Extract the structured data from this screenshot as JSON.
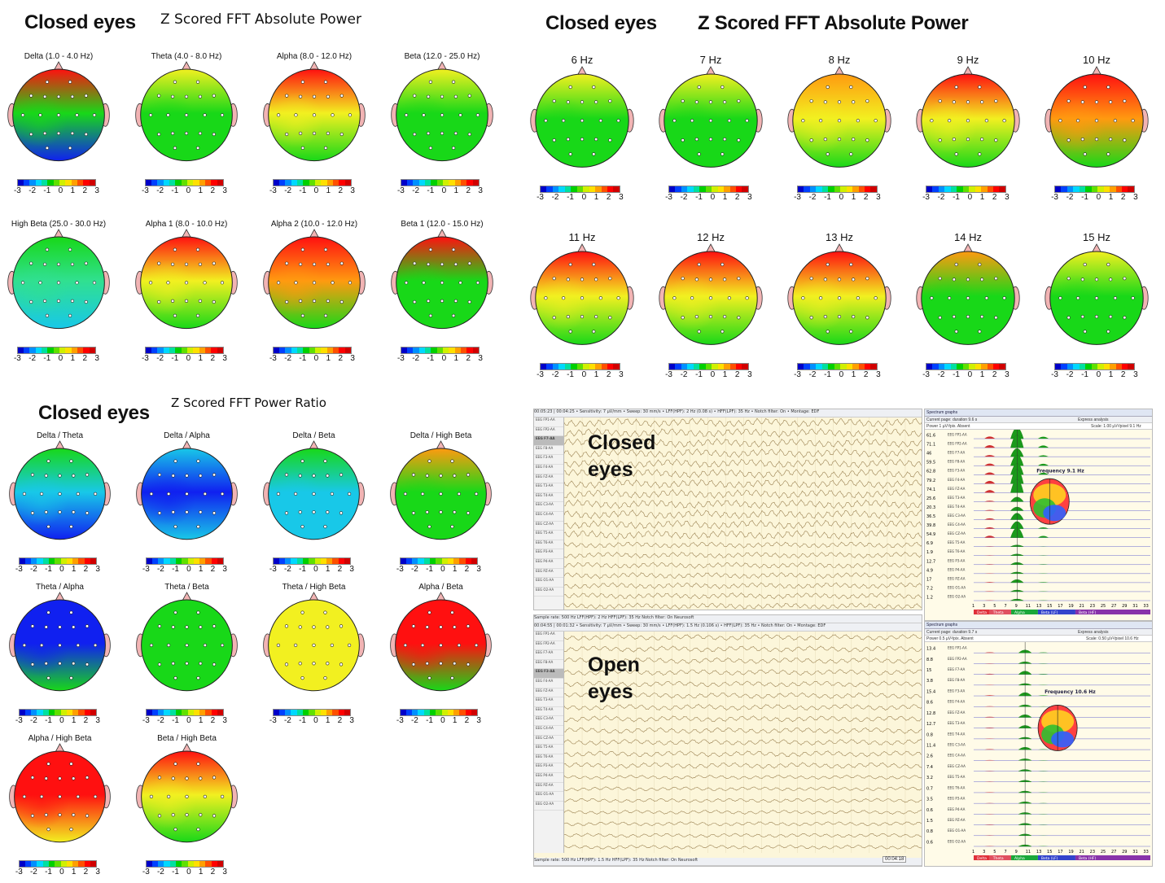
{
  "panel_a": {
    "title": "Closed eyes",
    "subtitle": "Z Scored FFT Absolute Power",
    "maps": [
      {
        "label": "Delta (1.0 - 4.0 Hz)",
        "top": "red",
        "mid": "green",
        "bot": "blue"
      },
      {
        "label": "Theta (4.0 - 8.0 Hz)",
        "top": "yellow",
        "mid": "green",
        "bot": "green"
      },
      {
        "label": "Alpha (8.0 - 12.0 Hz)",
        "top": "red",
        "mid": "yellow",
        "bot": "green"
      },
      {
        "label": "Beta (12.0 - 25.0 Hz)",
        "top": "yellow",
        "mid": "green",
        "bot": "green"
      },
      {
        "label": "High Beta (25.0 - 30.0 Hz)",
        "top": "green",
        "mid": "teal",
        "bot": "cyan"
      },
      {
        "label": "Alpha 1 (8.0 - 10.0 Hz)",
        "top": "red",
        "mid": "yellow",
        "bot": "green"
      },
      {
        "label": "Alpha 2 (10.0 - 12.0 Hz)",
        "top": "red",
        "mid": "orange",
        "bot": "green"
      },
      {
        "label": "Beta 1 (12.0 - 15.0 Hz)",
        "top": "red",
        "mid": "green",
        "bot": "green"
      }
    ]
  },
  "panel_b": {
    "title": "Closed eyes",
    "subtitle": "Z Scored FFT Absolute Power",
    "maps": [
      {
        "label": "6 Hz",
        "top": "yellow",
        "mid": "green",
        "bot": "green"
      },
      {
        "label": "7 Hz",
        "top": "yellow",
        "mid": "green",
        "bot": "green"
      },
      {
        "label": "8 Hz",
        "top": "orange",
        "mid": "yellow",
        "bot": "green"
      },
      {
        "label": "9 Hz",
        "top": "red",
        "mid": "yellow",
        "bot": "green"
      },
      {
        "label": "10 Hz",
        "top": "red",
        "mid": "orange",
        "bot": "green"
      },
      {
        "label": "11 Hz",
        "top": "red",
        "mid": "yellow",
        "bot": "green"
      },
      {
        "label": "12 Hz",
        "top": "red",
        "mid": "yellow",
        "bot": "green"
      },
      {
        "label": "13 Hz",
        "top": "red",
        "mid": "yellow",
        "bot": "green"
      },
      {
        "label": "14 Hz",
        "top": "orange",
        "mid": "green",
        "bot": "green"
      },
      {
        "label": "15 Hz",
        "top": "yellow",
        "mid": "green",
        "bot": "green"
      }
    ]
  },
  "panel_c": {
    "title": "Closed eyes",
    "subtitle": "Z Scored FFT Power Ratio",
    "maps": [
      {
        "label": "Delta / Theta",
        "top": "green",
        "mid": "cyan",
        "bot": "blue"
      },
      {
        "label": "Delta / Alpha",
        "top": "cyan",
        "mid": "blue",
        "bot": "cyan"
      },
      {
        "label": "Delta / Beta",
        "top": "green",
        "mid": "cyan",
        "bot": "cyan"
      },
      {
        "label": "Delta / High Beta",
        "top": "orange",
        "mid": "green",
        "bot": "green"
      },
      {
        "label": "Theta / Alpha",
        "top": "blue",
        "mid": "blue",
        "bot": "green"
      },
      {
        "label": "Theta / Beta",
        "top": "green",
        "mid": "green",
        "bot": "green"
      },
      {
        "label": "Theta / High Beta",
        "top": "yellow",
        "mid": "yellow",
        "bot": "yellow"
      },
      {
        "label": "Alpha / Beta",
        "top": "red",
        "mid": "red",
        "bot": "green"
      },
      {
        "label": "Alpha / High Beta",
        "top": "red",
        "mid": "red",
        "bot": "yellow"
      },
      {
        "label": "Beta / High Beta",
        "top": "red",
        "mid": "yellow",
        "bot": "green"
      }
    ]
  },
  "scale_ticks": [
    "-3",
    "-2",
    "-1",
    "0",
    "1",
    "2",
    "3"
  ],
  "scale_colors": [
    "#0000c8",
    "#0040ff",
    "#0090ff",
    "#00d8ff",
    "#00e0a0",
    "#00d000",
    "#60e000",
    "#d0f000",
    "#ffe000",
    "#ffa000",
    "#ff5000",
    "#ff0000",
    "#d00000"
  ],
  "eeg_top": {
    "overlay": [
      "Closed",
      "eyes"
    ],
    "toolbar": "00:05:23 | 00:04:25 • Sensitivity: 7 µV/mm • Sweep: 30 mm/s • LFF(HPF): 2 Hz (0.08 s) • HFF(LPF): 35 Hz • Notch filter: On • Montage: EDF",
    "status": "Sample rate: 500 Hz  LFF(HPF): 2 Hz  HFF(LPF): 35 Hz  Notch filter: On  Neurosoft",
    "spectrum_header": "Spectrum graphs",
    "spectrum_page": "Current page: duration 9.6 s",
    "spectrum_express": "Express analysis",
    "spectrum_power": "Power   1 µV²/pix.   Absent",
    "spectrum_scale": "Scale: 1.00 µV²/pixel  9.1 Hz",
    "frequency": "Frequency 9.1 Hz",
    "values": [
      "61.6",
      "71.1",
      "46",
      "59.5",
      "62.8",
      "79.2",
      "74.1",
      "25.6",
      "20.3",
      "36.5",
      "39.8",
      "54.9",
      "6.9",
      "1.9",
      "12.7",
      "4.9",
      "17",
      "7.2",
      "1.2"
    ]
  },
  "eeg_bottom": {
    "overlay": [
      "Open",
      "eyes"
    ],
    "toolbar": "00:04:55 | 00:01:32 • Sensitivity: 7 µV/mm • Sweep: 30 mm/s • LFF(HPF): 1.5 Hz (0.106 s) • HFF(LPF): 35 Hz • Notch filter: On • Montage: EDF",
    "status": "Sample rate: 500 Hz  LFF(HPF): 1.5 Hz  HFF(LPF): 35 Hz  Notch filter: On  Neurosoft",
    "spectrum_header": "Spectrum graphs",
    "spectrum_page": "Current page: duration 9.7 s",
    "spectrum_express": "Express analysis",
    "spectrum_power": "Power   0.5 µV²/pix.   Absent",
    "spectrum_scale": "Scale: 0.50 µV²/pixel  10.6 Hz",
    "frequency": "Frequency 10.6 Hz",
    "values": [
      "13.4",
      "8.8",
      "15",
      "3.8",
      "15.4",
      "8.6",
      "12.8",
      "12.7",
      "0.8",
      "11.4",
      "2.6",
      "7.4",
      "3.2",
      "0.7",
      "3.5",
      "0.6",
      "1.5",
      "0.8",
      "0.6"
    ],
    "time_badge": "00:04:18"
  },
  "channels": [
    "EEG FP1-AA",
    "EEG FP2-AA",
    "EEG F7-AA",
    "EEG F8-AA",
    "EEG F3-AA",
    "EEG F4-AA",
    "EEG FZ-AA",
    "EEG T3-AA",
    "EEG T4-AA",
    "EEG C3-AA",
    "EEG C4-AA",
    "EEG CZ-AA",
    "EEG T5-AA",
    "EEG T6-AA",
    "EEG P3-AA",
    "EEG P4-AA",
    "EEG PZ-AA",
    "EEG O1-AA",
    "EEG O2-AA"
  ],
  "band_bar": [
    "Delta",
    "Theta",
    "Alpha",
    "Beta (LF)",
    "Beta (HF)"
  ],
  "band_colors": [
    "#e0303a",
    "#e05060",
    "#1aa83a",
    "#3344cc",
    "#8833aa"
  ],
  "freq_axis": [
    "1",
    "3",
    "5",
    "7",
    "9",
    "11",
    "13",
    "15",
    "17",
    "19",
    "21",
    "23",
    "25",
    "27",
    "29",
    "31",
    "33"
  ]
}
